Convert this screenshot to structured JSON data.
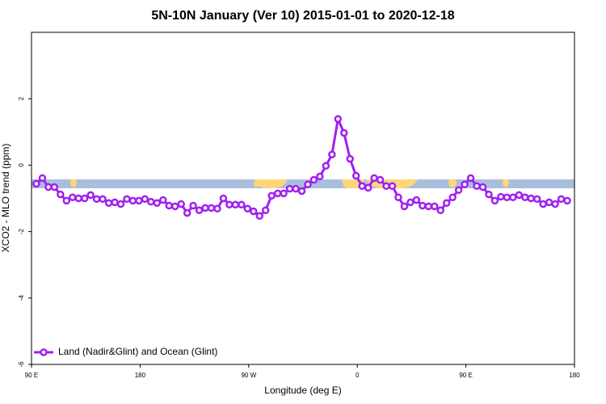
{
  "chart_data": {
    "type": "line",
    "title": "5N-10N January (Ver 10)   2015-01-01 to 2020-12-18",
    "x_label": "Longitude (deg E)",
    "y_label": "XCO2 - MLO trend (ppm)",
    "xlim": [
      90,
      540
    ],
    "xticks": [
      {
        "value": 90,
        "label": "90 E"
      },
      180,
      {
        "value": 270,
        "label": "90 W"
      },
      {
        "value": 360,
        "label": "0"
      },
      {
        "value": 450,
        "label": "90 E"
      },
      {
        "value": 540,
        "label": "180"
      }
    ],
    "ylim": [
      -6,
      4
    ],
    "yticks": [
      -6,
      -4,
      -2,
      0,
      2
    ],
    "legend": "bottom-left",
    "x": [
      94,
      99,
      104,
      109,
      114,
      119,
      124,
      129,
      134,
      139,
      144,
      149,
      154,
      159,
      164,
      169,
      174,
      179,
      184,
      189,
      194,
      199,
      204,
      209,
      214,
      219,
      224,
      229,
      234,
      239,
      244,
      249,
      254,
      259,
      264,
      269,
      274,
      279,
      284,
      289,
      294,
      299,
      304,
      309,
      314,
      319,
      324,
      329,
      334,
      339,
      344,
      349,
      354,
      359,
      364,
      369,
      374,
      379,
      384,
      389,
      394,
      399,
      404,
      409,
      414,
      419,
      424,
      429,
      434,
      439,
      444,
      449,
      454,
      459,
      464,
      469,
      474,
      479,
      484,
      489,
      494,
      499,
      504,
      509,
      514,
      519,
      524,
      529,
      534
    ],
    "series": [
      {
        "name": "Land (Nadir&Glint) and Ocean (Glint)",
        "color": "#a020f0",
        "values": [
          -0.56,
          -0.39,
          -0.66,
          -0.66,
          -0.88,
          -1.07,
          -0.97,
          -1.0,
          -1.0,
          -0.9,
          -1.02,
          -1.02,
          -1.14,
          -1.12,
          -1.17,
          -1.02,
          -1.07,
          -1.07,
          -1.02,
          -1.1,
          -1.14,
          -1.05,
          -1.22,
          -1.24,
          -1.17,
          -1.44,
          -1.22,
          -1.36,
          -1.29,
          -1.29,
          -1.31,
          -1.0,
          -1.19,
          -1.19,
          -1.19,
          -1.31,
          -1.39,
          -1.53,
          -1.36,
          -0.92,
          -0.85,
          -0.85,
          -0.71,
          -0.71,
          -0.78,
          -0.58,
          -0.44,
          -0.34,
          -0.02,
          0.32,
          1.39,
          0.97,
          0.19,
          -0.32,
          -0.63,
          -0.68,
          -0.39,
          -0.44,
          -0.63,
          -0.63,
          -0.97,
          -1.24,
          -1.12,
          -1.05,
          -1.22,
          -1.24,
          -1.24,
          -1.36,
          -1.14,
          -0.97,
          -0.75,
          -0.58,
          -0.39,
          -0.63,
          -0.66,
          -0.88,
          -1.07,
          -0.95,
          -0.97,
          -0.97,
          -0.9,
          -0.97,
          -1.0,
          -1.02,
          -1.17,
          -1.12,
          -1.17,
          -1.02,
          -1.07
        ]
      }
    ]
  }
}
